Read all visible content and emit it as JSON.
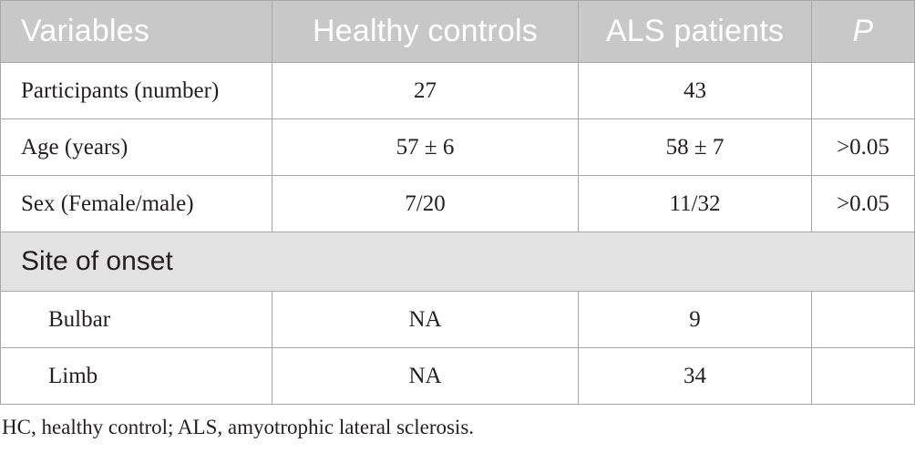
{
  "table": {
    "headers": [
      "Variables",
      "Healthy controls",
      "ALS patients",
      "P"
    ],
    "rows": [
      {
        "variable": "Participants (number)",
        "hc": "27",
        "als": "43",
        "p": ""
      },
      {
        "variable": "Age (years)",
        "hc": "57 ± 6",
        "als": "58 ± 7",
        "p": ">0.05"
      },
      {
        "variable": "Sex (Female/male)",
        "hc": "7/20",
        "als": "11/32",
        "p": ">0.05"
      }
    ],
    "section": "Site of onset",
    "subrows": [
      {
        "variable": "Bulbar",
        "hc": "NA",
        "als": "9",
        "p": ""
      },
      {
        "variable": "Limb",
        "hc": "NA",
        "als": "34",
        "p": ""
      }
    ]
  },
  "footnote": "HC, healthy control; ALS, amyotrophic lateral sclerosis."
}
